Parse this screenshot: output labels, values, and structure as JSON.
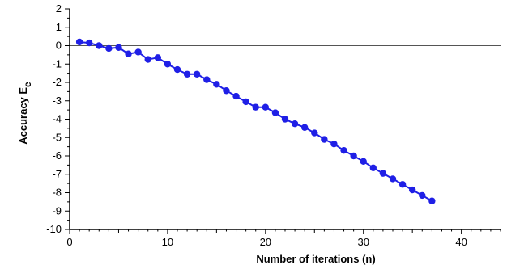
{
  "chart_data": {
    "type": "line",
    "title": "",
    "xlabel": "Number of iterations (n)",
    "ylabel": "Accuracy E",
    "ylabel_subscript": "e",
    "xlim": [
      0,
      44
    ],
    "ylim": [
      -10,
      2
    ],
    "x_ticks": [
      0,
      10,
      20,
      30,
      40
    ],
    "y_ticks": [
      2,
      1,
      0,
      -1,
      -2,
      -3,
      -4,
      -5,
      -6,
      -7,
      -8,
      -9,
      -10
    ],
    "reference_line_y": 0,
    "grid": false,
    "marker_color": "#1f1fe6",
    "line_color": "#1f1fe6",
    "series": [
      {
        "x": [
          1,
          2,
          3,
          4,
          5,
          6,
          7,
          8,
          9,
          10,
          11,
          12,
          13,
          14,
          15,
          16,
          17,
          18,
          19,
          20,
          21,
          22,
          23,
          24,
          25,
          26,
          27,
          28,
          29,
          30,
          31,
          32,
          33,
          34,
          35,
          36,
          37
        ],
        "values": [
          0.2,
          0.15,
          0.0,
          -0.15,
          -0.1,
          -0.45,
          -0.35,
          -0.75,
          -0.65,
          -1.0,
          -1.3,
          -1.55,
          -1.55,
          -1.85,
          -2.1,
          -2.45,
          -2.75,
          -3.05,
          -3.35,
          -3.35,
          -3.65,
          -4.0,
          -4.25,
          -4.45,
          -4.75,
          -5.1,
          -5.35,
          -5.7,
          -6.0,
          -6.3,
          -6.65,
          -6.95,
          -7.25,
          -7.55,
          -7.85,
          -8.15,
          -8.45
        ]
      }
    ]
  }
}
